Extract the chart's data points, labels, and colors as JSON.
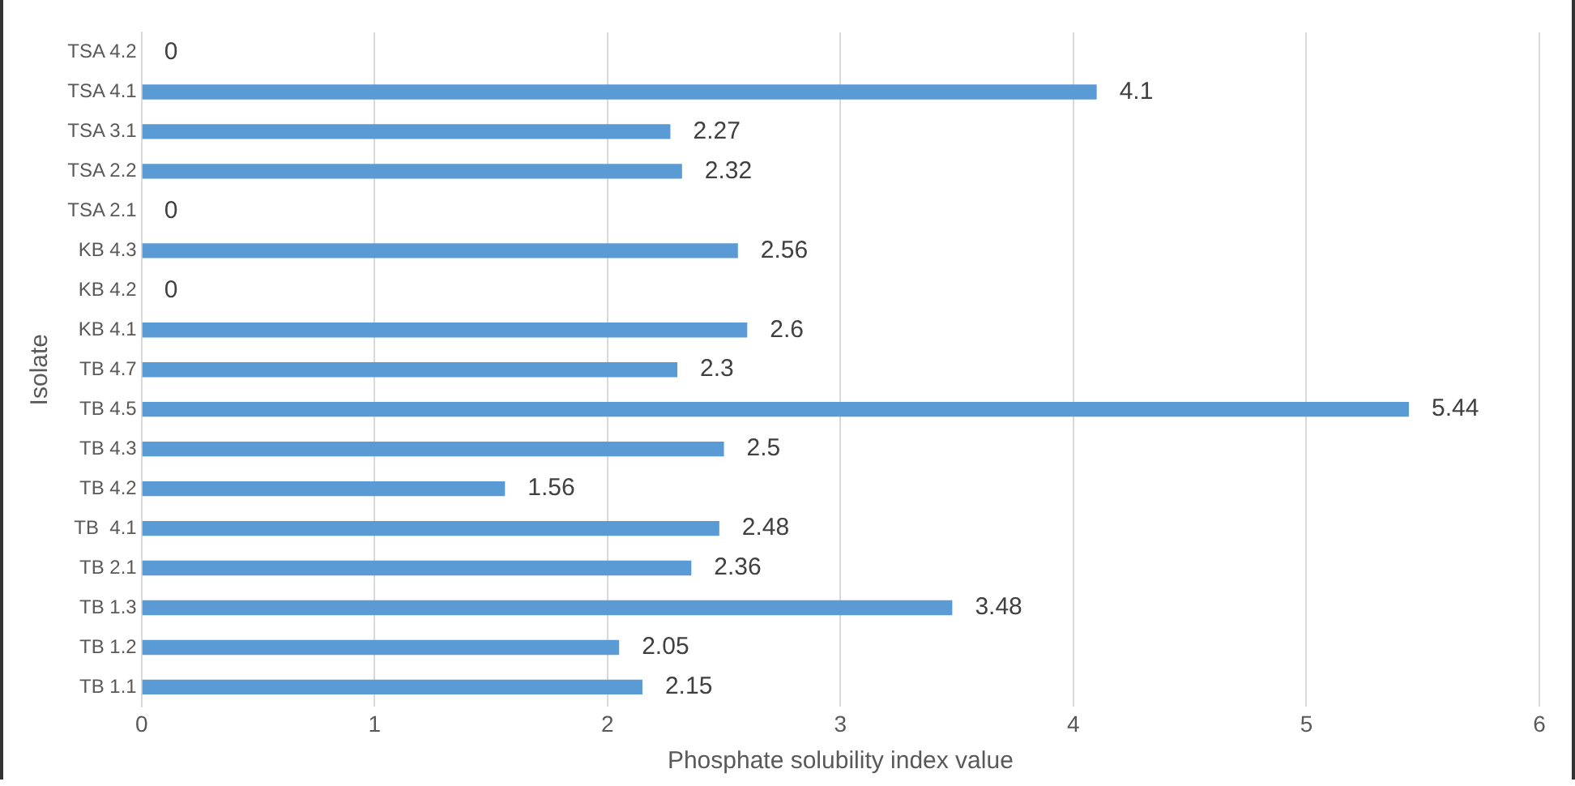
{
  "chart_data": {
    "type": "bar",
    "orientation": "horizontal",
    "xlabel": "Phosphate solubility index value",
    "ylabel": "Isolate",
    "categories": [
      "TSA 4.2",
      "TSA 4.1",
      "TSA 3.1",
      "TSA 2.2",
      "TSA 2.1",
      "KB 4.3",
      "KB 4.2",
      "KB 4.1",
      "TB 4.7",
      "TB 4.5",
      "TB 4.3",
      "TB 4.2",
      "TB  4.1",
      "TB 2.1",
      "TB 1.3",
      "TB 1.2",
      "TB 1.1"
    ],
    "values": [
      0,
      4.1,
      2.27,
      2.32,
      0,
      2.56,
      0,
      2.6,
      2.3,
      5.44,
      2.5,
      1.56,
      2.48,
      2.36,
      3.48,
      2.05,
      2.15
    ],
    "color": "#5b9bd5",
    "xlim": [
      0,
      6
    ],
    "xticks": [
      0,
      1,
      2,
      3,
      4,
      5,
      6
    ],
    "grid": "x",
    "data_labels": true
  }
}
